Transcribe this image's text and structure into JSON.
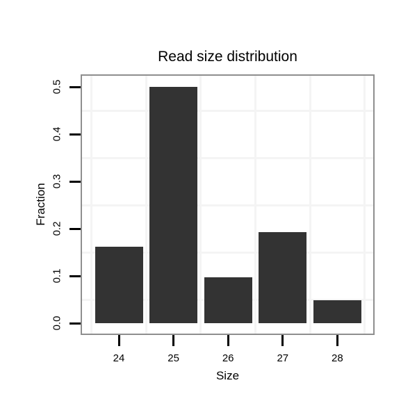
{
  "chart_data": {
    "type": "bar",
    "title": "Read size distribution",
    "xlabel": "Size",
    "ylabel": "Fraction",
    "categories": [
      "24",
      "25",
      "26",
      "27",
      "28"
    ],
    "values": [
      0.162,
      0.5,
      0.097,
      0.193,
      0.049
    ],
    "y_ticks": [
      "0.0",
      "0.1",
      "0.2",
      "0.3",
      "0.4",
      "0.5"
    ],
    "ylim": [
      0,
      0.5
    ],
    "y_minor_gridlines": [
      0.05,
      0.15,
      0.25,
      0.35,
      0.45
    ],
    "legend": "none",
    "grid": "minor only",
    "colors": {
      "bar": "#333333",
      "panel_border": "#8e8e8e",
      "grid_minor": "#f4f4f4",
      "tick": "#000000",
      "text": "#000000",
      "background": "#ffffff"
    }
  }
}
